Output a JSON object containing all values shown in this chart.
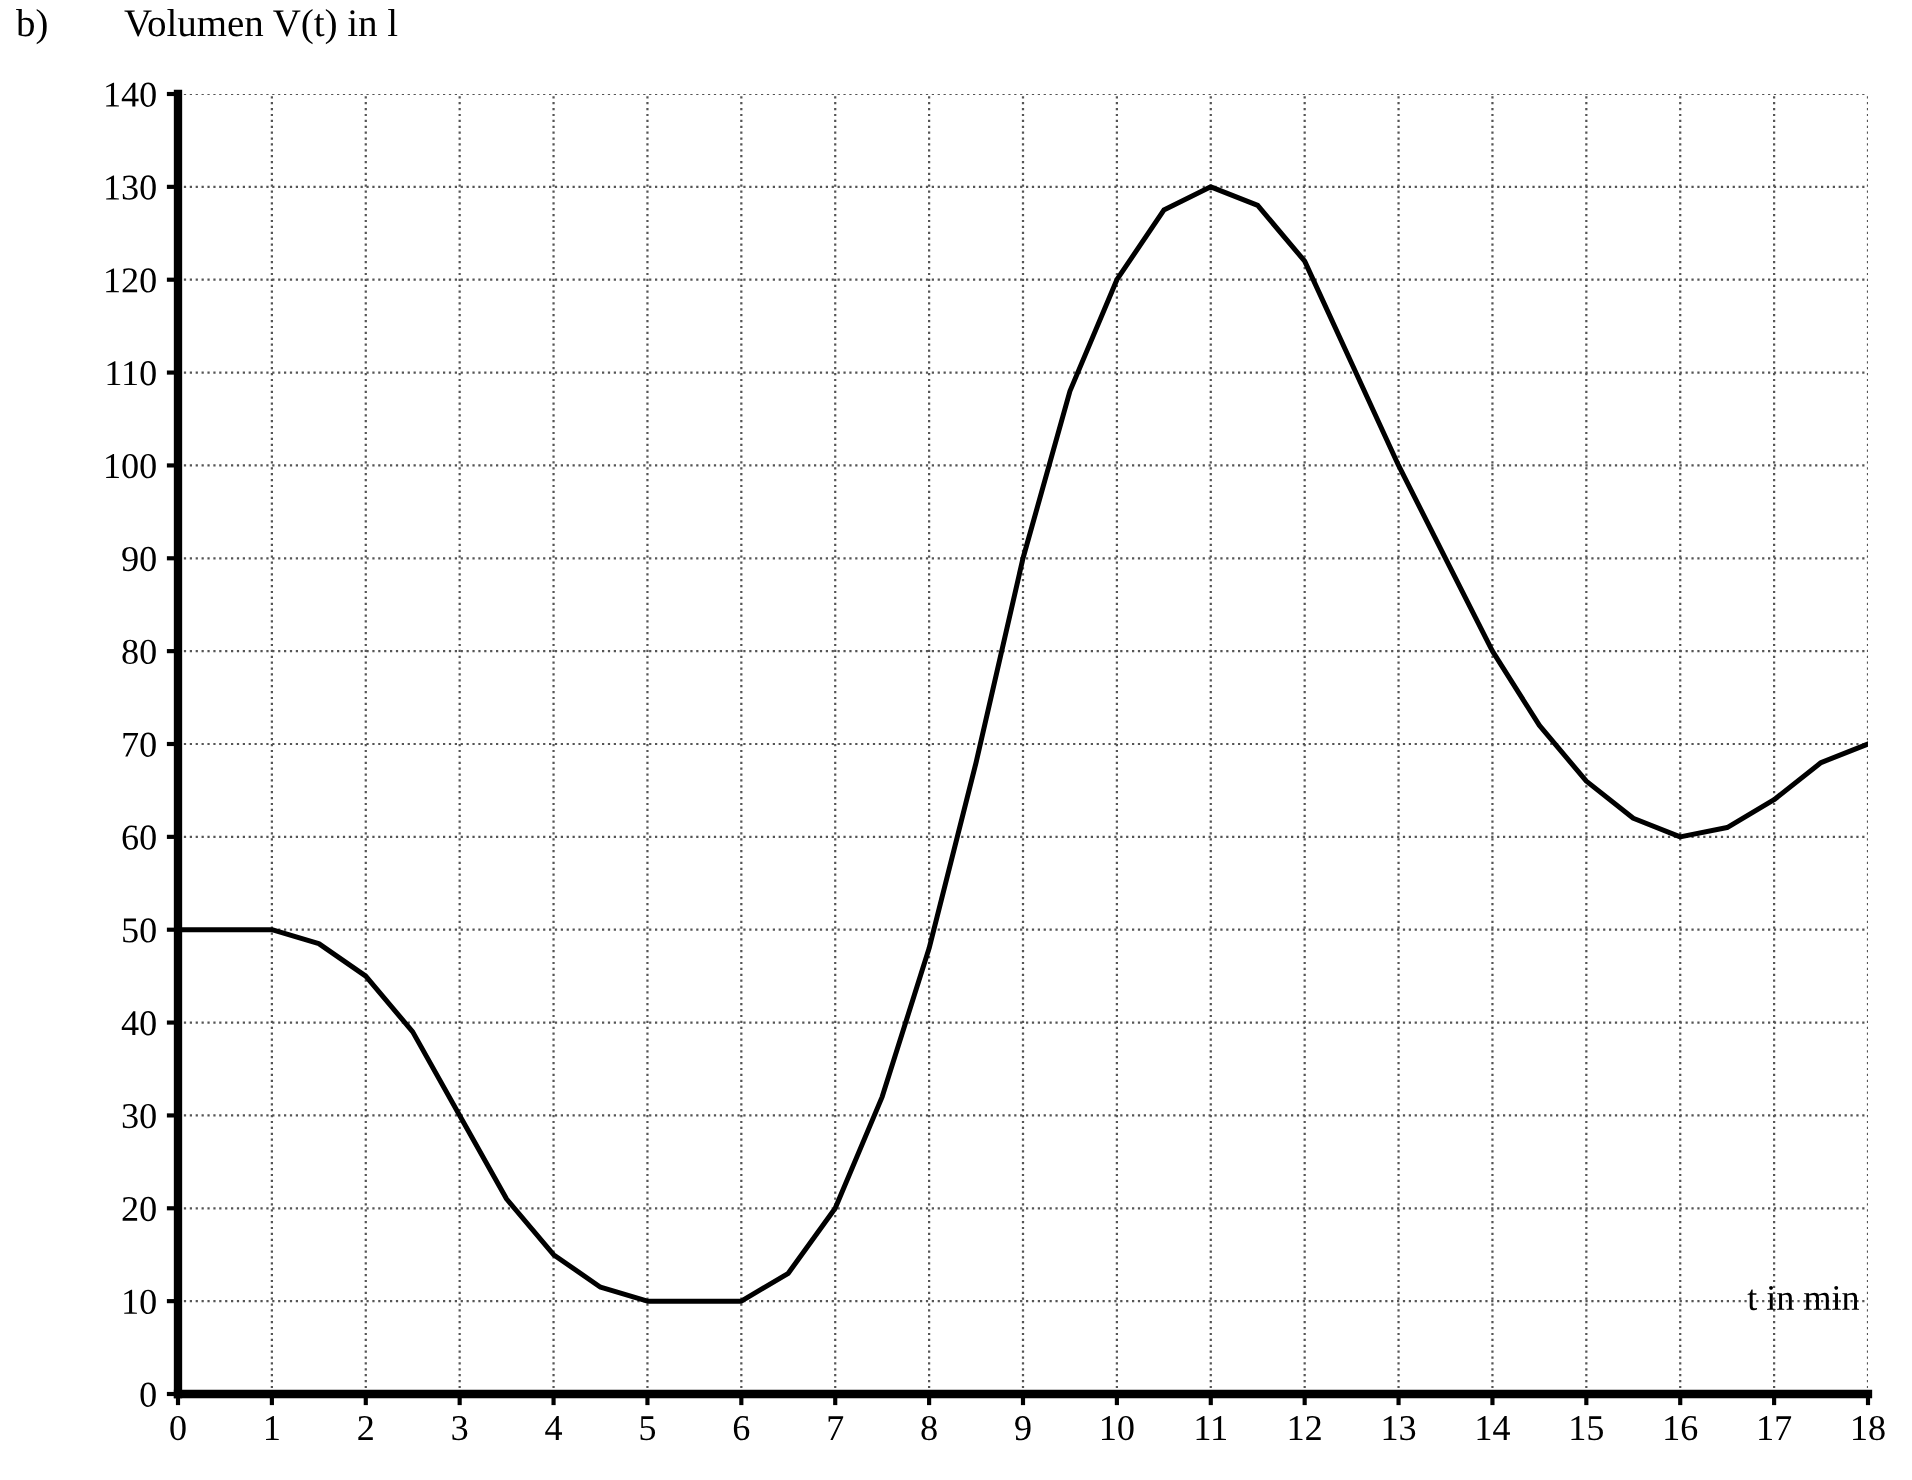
{
  "chart_data": {
    "type": "line",
    "title": "b)",
    "ylabel": "Volumen V(t) in l",
    "xlabel": "t in min",
    "series": [
      {
        "color": "#000000",
        "x": [
          0,
          1,
          1.5,
          2,
          2.5,
          3,
          3.5,
          4,
          4.5,
          5,
          6,
          6.5,
          7,
          7.5,
          8,
          8.5,
          9,
          9.5,
          10,
          10.5,
          11,
          11.5,
          12,
          12.5,
          13,
          13.5,
          14,
          14.5,
          15,
          15.5,
          16,
          16.5,
          17,
          17.5,
          18
        ],
        "values": [
          50,
          50,
          48.5,
          45,
          39,
          30,
          21,
          15,
          11.5,
          10,
          10,
          13,
          20,
          32,
          48,
          68,
          90,
          108,
          120,
          127.5,
          130,
          128,
          122,
          111,
          100,
          90,
          80,
          72,
          66,
          62,
          60,
          61,
          64,
          68,
          70
        ]
      }
    ],
    "xlim": [
      0,
      18
    ],
    "ylim": [
      0,
      140
    ],
    "xticks": [
      0,
      1,
      2,
      3,
      4,
      5,
      6,
      7,
      8,
      9,
      10,
      11,
      12,
      13,
      14,
      15,
      16,
      17,
      18
    ],
    "yticks": [
      0,
      10,
      20,
      30,
      40,
      50,
      60,
      70,
      80,
      90,
      100,
      110,
      120,
      130,
      140
    ],
    "grid": true,
    "marker": "none",
    "line_style": "solid"
  }
}
